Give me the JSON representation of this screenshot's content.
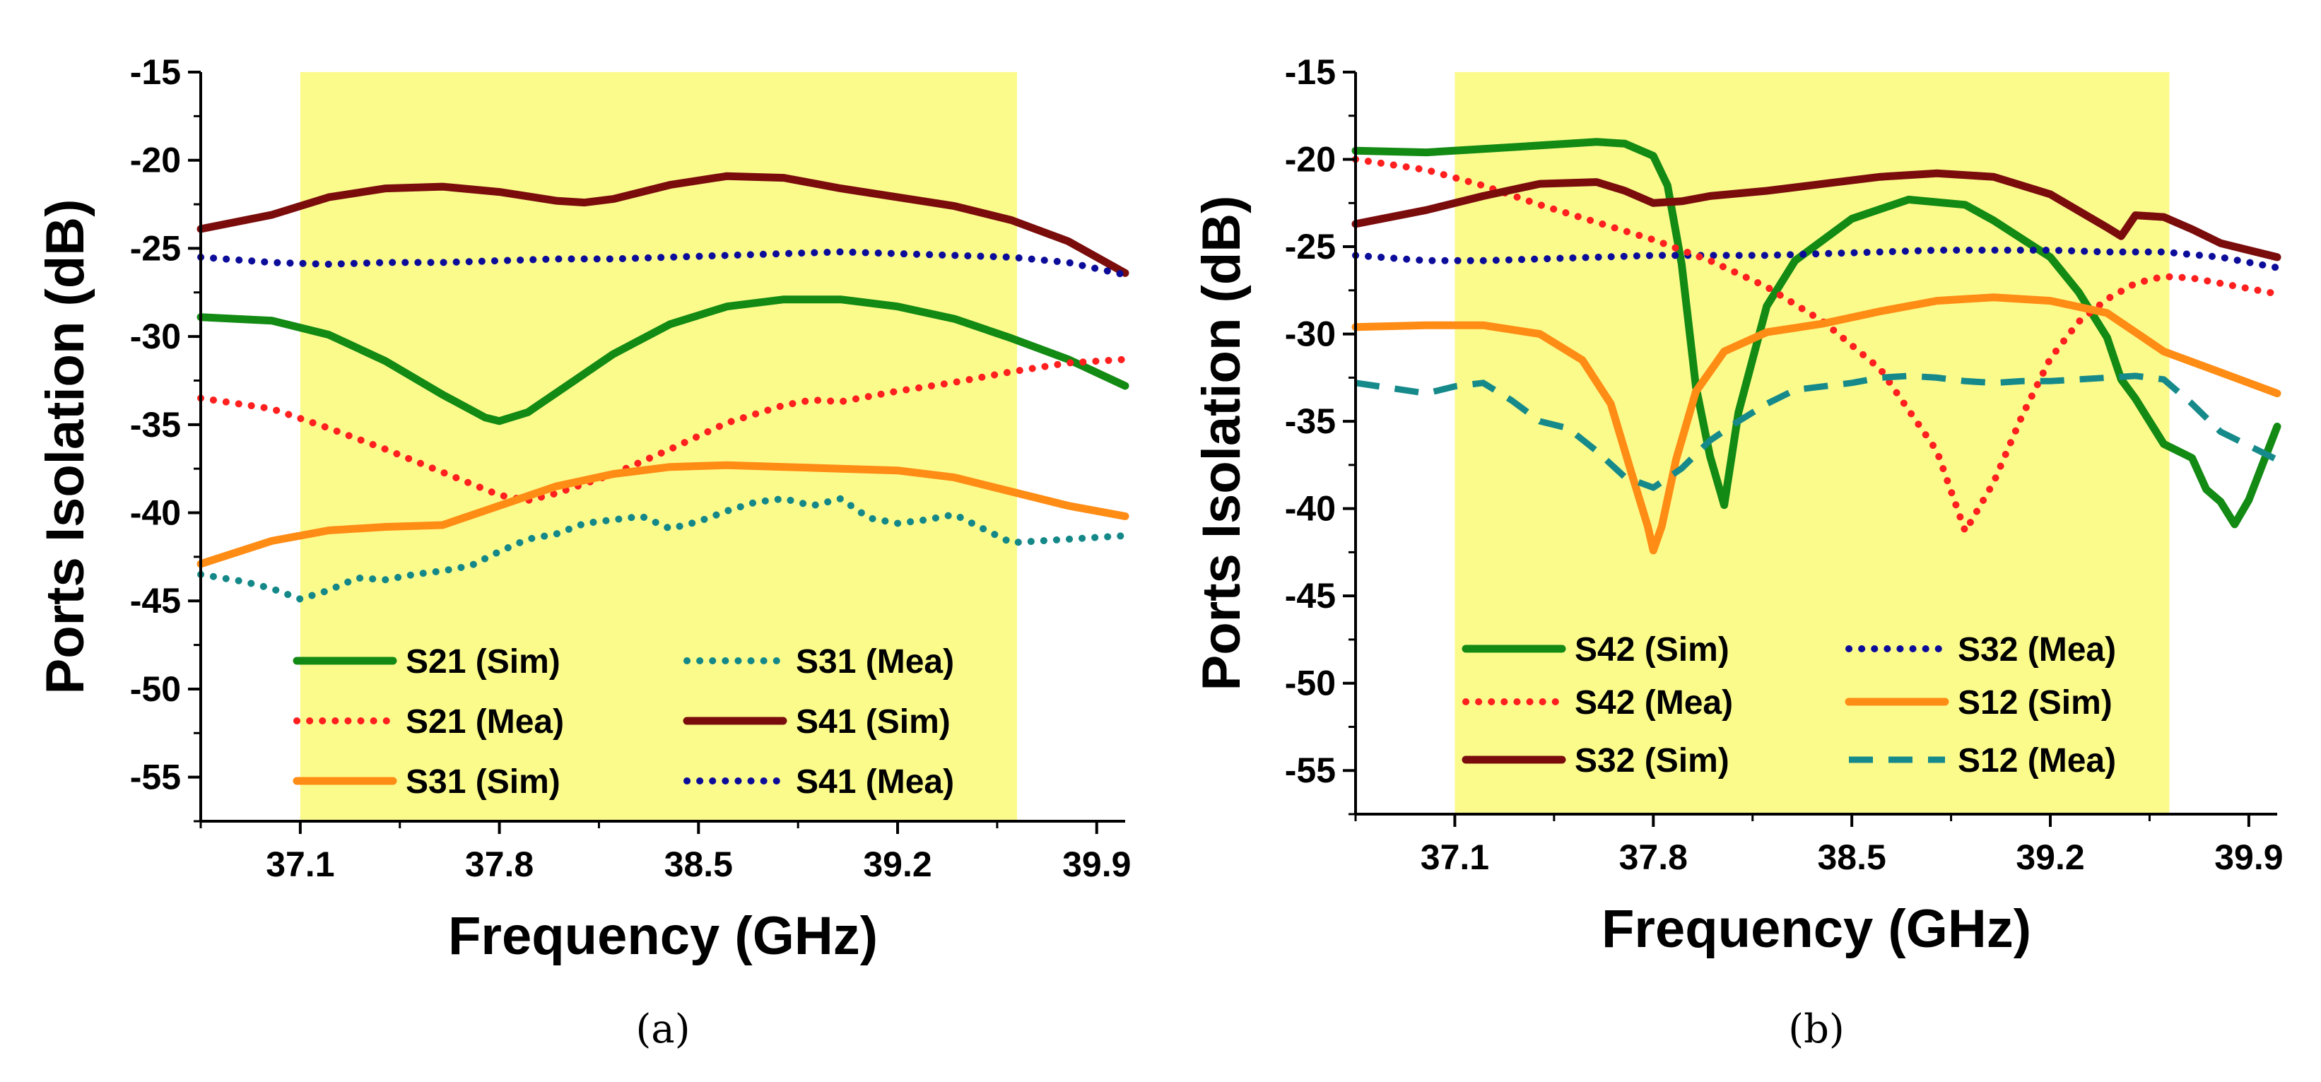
{
  "chart_data": [
    {
      "type": "line",
      "caption": "(a)",
      "xlabel": "Frequency (GHz)",
      "ylabel": "Ports Isolation (dB)",
      "xlim": [
        36.75,
        40.0
      ],
      "ylim": [
        -57.5,
        -15
      ],
      "xticks": [
        37.1,
        37.8,
        38.5,
        39.2,
        39.9
      ],
      "xtick_labels": [
        "37.1",
        "37.8",
        "38.5",
        "39.2",
        "39.9"
      ],
      "yticks": [
        -15,
        -20,
        -25,
        -30,
        -35,
        -40,
        -45,
        -50,
        -55
      ],
      "ytick_labels": [
        "-15",
        "-20",
        "-25",
        "-30",
        "-35",
        "-40",
        "-45",
        "-50",
        "-55"
      ],
      "grid": false,
      "highlight_band": {
        "x": [
          37.1,
          39.62
        ],
        "color": "#fbfb8c"
      },
      "legend": {
        "placement": "bottom",
        "columns": 2
      },
      "series": [
        {
          "name": "S21 (Sim)",
          "color": "#138a13",
          "style": "solid",
          "x": [
            36.75,
            37.0,
            37.2,
            37.4,
            37.6,
            37.75,
            37.8,
            37.9,
            38.0,
            38.2,
            38.4,
            38.6,
            38.8,
            39.0,
            39.2,
            39.4,
            39.6,
            39.8,
            40.0
          ],
          "y": [
            -28.9,
            -29.1,
            -29.9,
            -31.4,
            -33.3,
            -34.6,
            -34.8,
            -34.3,
            -33.2,
            -31.0,
            -29.3,
            -28.3,
            -27.9,
            -27.9,
            -28.3,
            -29.0,
            -30.1,
            -31.3,
            -32.8
          ]
        },
        {
          "name": "S31 (Mea)",
          "color": "#148888",
          "style": "dotted",
          "x": [
            36.75,
            36.9,
            37.0,
            37.1,
            37.2,
            37.3,
            37.4,
            37.5,
            37.6,
            37.7,
            37.8,
            37.9,
            38.0,
            38.1,
            38.2,
            38.3,
            38.4,
            38.5,
            38.6,
            38.7,
            38.8,
            38.9,
            39.0,
            39.1,
            39.2,
            39.3,
            39.4,
            39.5,
            39.6,
            39.7,
            39.8,
            39.9,
            40.0
          ],
          "y": [
            -43.5,
            -43.9,
            -44.3,
            -44.9,
            -44.4,
            -43.7,
            -43.8,
            -43.5,
            -43.3,
            -43.0,
            -42.2,
            -41.5,
            -41.2,
            -40.6,
            -40.4,
            -40.2,
            -40.9,
            -40.5,
            -39.9,
            -39.4,
            -39.2,
            -39.6,
            -39.2,
            -40.3,
            -40.6,
            -40.4,
            -40.1,
            -40.9,
            -41.7,
            -41.6,
            -41.5,
            -41.4,
            -41.3
          ]
        },
        {
          "name": "S21 (Mea)",
          "color": "#ff1f1f",
          "style": "dotted",
          "x": [
            36.75,
            37.0,
            37.2,
            37.4,
            37.6,
            37.8,
            37.9,
            38.0,
            38.2,
            38.4,
            38.6,
            38.8,
            38.9,
            39.0,
            39.2,
            39.4,
            39.6,
            39.8,
            40.0
          ],
          "y": [
            -33.5,
            -34.1,
            -35.2,
            -36.4,
            -37.7,
            -39.0,
            -39.3,
            -38.9,
            -37.8,
            -36.4,
            -34.9,
            -33.9,
            -33.6,
            -33.7,
            -33.1,
            -32.6,
            -32.0,
            -31.5,
            -31.3
          ]
        },
        {
          "name": "S41 (Sim)",
          "color": "#7b0c0c",
          "style": "solid",
          "x": [
            36.75,
            37.0,
            37.2,
            37.4,
            37.6,
            37.8,
            38.0,
            38.1,
            38.2,
            38.4,
            38.6,
            38.8,
            39.0,
            39.2,
            39.4,
            39.6,
            39.8,
            40.0
          ],
          "y": [
            -23.9,
            -23.1,
            -22.1,
            -21.6,
            -21.5,
            -21.8,
            -22.3,
            -22.4,
            -22.2,
            -21.4,
            -20.9,
            -21.0,
            -21.6,
            -22.1,
            -22.6,
            -23.4,
            -24.6,
            -26.4
          ]
        },
        {
          "name": "S31 (Sim)",
          "color": "#ff8c14",
          "style": "solid",
          "x": [
            36.75,
            37.0,
            37.2,
            37.4,
            37.6,
            37.8,
            38.0,
            38.2,
            38.4,
            38.6,
            38.8,
            39.0,
            39.2,
            39.4,
            39.6,
            39.8,
            40.0
          ],
          "y": [
            -42.9,
            -41.6,
            -41.0,
            -40.8,
            -40.7,
            -39.6,
            -38.5,
            -37.8,
            -37.4,
            -37.3,
            -37.4,
            -37.5,
            -37.6,
            -38.0,
            -38.8,
            -39.6,
            -40.2
          ]
        },
        {
          "name": "S41 (Mea)",
          "color": "#0c0c9a",
          "style": "dotted",
          "x": [
            36.75,
            37.0,
            37.2,
            37.4,
            37.6,
            37.8,
            38.0,
            38.2,
            38.4,
            38.6,
            38.8,
            39.0,
            39.2,
            39.4,
            39.6,
            39.8,
            40.0
          ],
          "y": [
            -25.5,
            -25.8,
            -25.9,
            -25.8,
            -25.8,
            -25.7,
            -25.6,
            -25.6,
            -25.5,
            -25.4,
            -25.3,
            -25.2,
            -25.3,
            -25.4,
            -25.5,
            -25.8,
            -26.5
          ]
        }
      ]
    },
    {
      "type": "line",
      "caption": "(b)",
      "xlabel": "Frequency (GHz)",
      "ylabel": "Ports Isolation (dB)",
      "xlim": [
        36.75,
        40.0
      ],
      "ylim": [
        -57.5,
        -15
      ],
      "xticks": [
        37.1,
        37.8,
        38.5,
        39.2,
        39.9
      ],
      "xtick_labels": [
        "37.1",
        "37.8",
        "38.5",
        "39.2",
        "39.9"
      ],
      "yticks": [
        -15,
        -20,
        -25,
        -30,
        -35,
        -40,
        -45,
        -50,
        -55
      ],
      "ytick_labels": [
        "-15",
        "-20",
        "-25",
        "-30",
        "-35",
        "-40",
        "-45",
        "-50",
        "-55"
      ],
      "grid": false,
      "highlight_band": {
        "x": [
          37.1,
          39.62
        ],
        "color": "#fbfb8c"
      },
      "legend": {
        "placement": "bottom",
        "columns": 2
      },
      "series": [
        {
          "name": "S42 (Sim)",
          "color": "#138a13",
          "style": "solid",
          "x": [
            36.75,
            37.0,
            37.2,
            37.4,
            37.6,
            37.7,
            37.8,
            37.85,
            37.9,
            37.95,
            38.0,
            38.05,
            38.1,
            38.2,
            38.3,
            38.5,
            38.7,
            38.9,
            39.0,
            39.2,
            39.3,
            39.4,
            39.45,
            39.5,
            39.55,
            39.6,
            39.7,
            39.75,
            39.8,
            39.85,
            39.9,
            40.0
          ],
          "y": [
            -19.5,
            -19.6,
            -19.4,
            -19.2,
            -19.0,
            -19.1,
            -19.8,
            -21.5,
            -26.0,
            -33.0,
            -37.0,
            -39.8,
            -34.5,
            -28.4,
            -25.8,
            -23.4,
            -22.3,
            -22.6,
            -23.5,
            -25.6,
            -27.6,
            -30.2,
            -32.6,
            -33.7,
            -35.0,
            -36.3,
            -37.1,
            -38.9,
            -39.6,
            -40.9,
            -39.5,
            -35.3
          ]
        },
        {
          "name": "S32 (Mea)",
          "color": "#0c0c9a",
          "style": "dotted",
          "x": [
            36.75,
            37.0,
            37.2,
            37.4,
            37.6,
            37.8,
            38.0,
            38.2,
            38.4,
            38.6,
            38.8,
            39.0,
            39.2,
            39.4,
            39.6,
            39.8,
            40.0
          ],
          "y": [
            -25.5,
            -25.8,
            -25.8,
            -25.7,
            -25.6,
            -25.5,
            -25.5,
            -25.5,
            -25.4,
            -25.3,
            -25.2,
            -25.2,
            -25.2,
            -25.3,
            -25.3,
            -25.6,
            -26.2
          ]
        },
        {
          "name": "S42 (Mea)",
          "color": "#ff1f1f",
          "style": "dotted",
          "x": [
            36.75,
            37.0,
            37.2,
            37.4,
            37.6,
            37.8,
            38.0,
            38.2,
            38.4,
            38.6,
            38.8,
            38.9,
            39.0,
            39.1,
            39.2,
            39.3,
            39.4,
            39.5,
            39.6,
            39.7,
            39.8,
            40.0
          ],
          "y": [
            -20.0,
            -20.6,
            -21.5,
            -22.6,
            -23.6,
            -24.6,
            -25.8,
            -27.3,
            -29.3,
            -32.0,
            -36.7,
            -41.3,
            -38.5,
            -34.7,
            -31.4,
            -29.3,
            -28.0,
            -27.1,
            -26.7,
            -26.8,
            -27.1,
            -27.7
          ]
        },
        {
          "name": "S12 (Sim)",
          "color": "#ff8c14",
          "style": "solid",
          "x": [
            36.75,
            37.0,
            37.2,
            37.4,
            37.55,
            37.65,
            37.72,
            37.78,
            37.8,
            37.83,
            37.88,
            37.95,
            38.05,
            38.2,
            38.4,
            38.6,
            38.8,
            39.0,
            39.2,
            39.4,
            39.5,
            39.6,
            39.8,
            40.0
          ],
          "y": [
            -29.6,
            -29.5,
            -29.5,
            -30.0,
            -31.5,
            -34.0,
            -37.8,
            -41.0,
            -42.4,
            -41.0,
            -37.2,
            -33.3,
            -31.0,
            -29.9,
            -29.4,
            -28.7,
            -28.1,
            -27.9,
            -28.1,
            -28.8,
            -29.9,
            -31.0,
            -32.2,
            -33.4
          ]
        },
        {
          "name": "S32 (Sim)",
          "color": "#7b0c0c",
          "style": "solid",
          "x": [
            36.75,
            37.0,
            37.2,
            37.4,
            37.6,
            37.7,
            37.8,
            37.9,
            38.0,
            38.2,
            38.4,
            38.6,
            38.8,
            39.0,
            39.2,
            39.4,
            39.45,
            39.5,
            39.6,
            39.7,
            39.8,
            40.0
          ],
          "y": [
            -23.7,
            -22.9,
            -22.1,
            -21.4,
            -21.3,
            -21.8,
            -22.5,
            -22.4,
            -22.1,
            -21.8,
            -21.4,
            -21.0,
            -20.8,
            -21.0,
            -22.0,
            -23.9,
            -24.4,
            -23.2,
            -23.3,
            -24.0,
            -24.8,
            -25.6
          ]
        },
        {
          "name": "S12 (Mea)",
          "color": "#168a8a",
          "style": "dashed",
          "x": [
            36.75,
            37.0,
            37.1,
            37.2,
            37.3,
            37.4,
            37.5,
            37.6,
            37.7,
            37.8,
            37.9,
            38.0,
            38.1,
            38.2,
            38.3,
            38.4,
            38.5,
            38.6,
            38.7,
            38.8,
            38.9,
            39.0,
            39.1,
            39.2,
            39.3,
            39.4,
            39.5,
            39.6,
            39.7,
            39.8,
            39.9,
            40.0
          ],
          "y": [
            -32.8,
            -33.4,
            -33.0,
            -32.8,
            -33.8,
            -35.0,
            -35.4,
            -36.7,
            -38.2,
            -38.8,
            -37.7,
            -36.1,
            -35.0,
            -34.0,
            -33.2,
            -33.0,
            -32.8,
            -32.5,
            -32.4,
            -32.5,
            -32.7,
            -32.8,
            -32.7,
            -32.7,
            -32.6,
            -32.5,
            -32.4,
            -32.6,
            -34.0,
            -35.6,
            -36.4,
            -37.2
          ]
        }
      ]
    }
  ]
}
